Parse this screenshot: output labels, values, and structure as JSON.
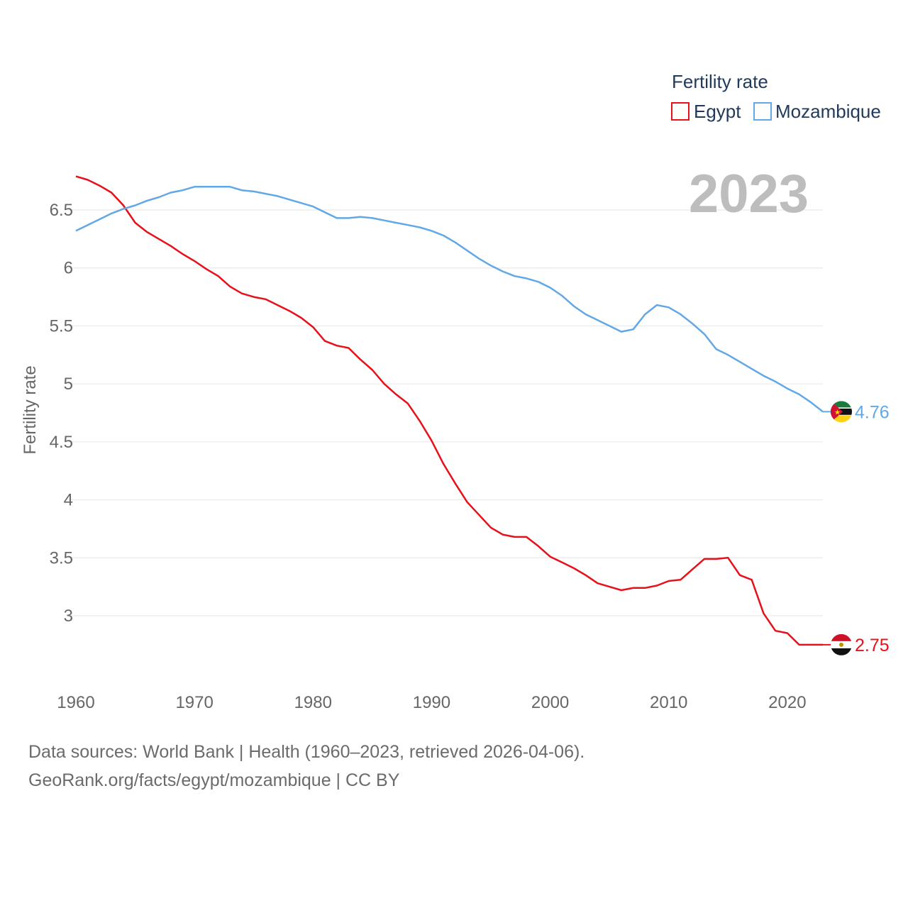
{
  "chart_data": {
    "type": "line",
    "title": "Fertility rate",
    "ylabel": "Fertility rate",
    "xlabel": "",
    "year_label": "2023",
    "xlim": [
      1960,
      2023
    ],
    "ylim": [
      2.5,
      6.85
    ],
    "x_ticks": [
      1960,
      1970,
      1980,
      1990,
      2000,
      2010,
      2020
    ],
    "y_ticks": [
      3,
      3.5,
      4,
      4.5,
      5,
      5.5,
      6,
      6.5
    ],
    "y_tick_labels": [
      "3",
      "3.5",
      "4",
      "4.5",
      "5",
      "5.5",
      "6",
      "6.5"
    ],
    "x_tick_labels": [
      "1960",
      "1970",
      "1980",
      "1990",
      "2000",
      "2010",
      "2020"
    ],
    "legend_position": "top-right",
    "grid": true,
    "x": [
      1960,
      1961,
      1962,
      1963,
      1964,
      1965,
      1966,
      1967,
      1968,
      1969,
      1970,
      1971,
      1972,
      1973,
      1974,
      1975,
      1976,
      1977,
      1978,
      1979,
      1980,
      1981,
      1982,
      1983,
      1984,
      1985,
      1986,
      1987,
      1988,
      1989,
      1990,
      1991,
      1992,
      1993,
      1994,
      1995,
      1996,
      1997,
      1998,
      1999,
      2000,
      2001,
      2002,
      2003,
      2004,
      2005,
      2006,
      2007,
      2008,
      2009,
      2010,
      2011,
      2012,
      2013,
      2014,
      2015,
      2016,
      2017,
      2018,
      2019,
      2020,
      2021,
      2022,
      2023
    ],
    "series": [
      {
        "name": "Egypt",
        "color": "#e8101a",
        "end_label": "2.75",
        "values": [
          6.79,
          6.76,
          6.71,
          6.65,
          6.54,
          6.39,
          6.31,
          6.25,
          6.19,
          6.12,
          6.06,
          5.99,
          5.93,
          5.84,
          5.78,
          5.75,
          5.73,
          5.68,
          5.63,
          5.57,
          5.49,
          5.37,
          5.33,
          5.31,
          5.21,
          5.12,
          5.0,
          4.91,
          4.83,
          4.68,
          4.51,
          4.31,
          4.14,
          3.98,
          3.87,
          3.76,
          3.7,
          3.68,
          3.68,
          3.6,
          3.51,
          3.46,
          3.41,
          3.35,
          3.28,
          3.25,
          3.22,
          3.24,
          3.24,
          3.26,
          3.3,
          3.31,
          3.4,
          3.49,
          3.49,
          3.5,
          3.35,
          3.31,
          3.02,
          2.87,
          2.85,
          2.75,
          2.75,
          2.75
        ]
      },
      {
        "name": "Mozambique",
        "color": "#62a8e6",
        "end_label": "4.76",
        "values": [
          6.32,
          6.37,
          6.42,
          6.47,
          6.51,
          6.54,
          6.58,
          6.61,
          6.65,
          6.67,
          6.7,
          6.7,
          6.7,
          6.7,
          6.67,
          6.66,
          6.64,
          6.62,
          6.59,
          6.56,
          6.53,
          6.48,
          6.43,
          6.43,
          6.44,
          6.43,
          6.41,
          6.39,
          6.37,
          6.35,
          6.32,
          6.28,
          6.22,
          6.15,
          6.08,
          6.02,
          5.97,
          5.93,
          5.91,
          5.88,
          5.83,
          5.76,
          5.67,
          5.6,
          5.55,
          5.5,
          5.45,
          5.47,
          5.6,
          5.68,
          5.66,
          5.6,
          5.52,
          5.43,
          5.3,
          5.25,
          5.19,
          5.13,
          5.07,
          5.02,
          4.96,
          4.91,
          4.84,
          4.76
        ]
      }
    ]
  },
  "footer": {
    "line1": "Data sources: World Bank | Health (1960–2023, retrieved 2026-04-06).",
    "line2": "GeoRank.org/facts/egypt/mozambique | CC BY"
  },
  "icons": {
    "egypt": "egypt-flag-icon",
    "mozambique": "mozambique-flag-icon"
  }
}
